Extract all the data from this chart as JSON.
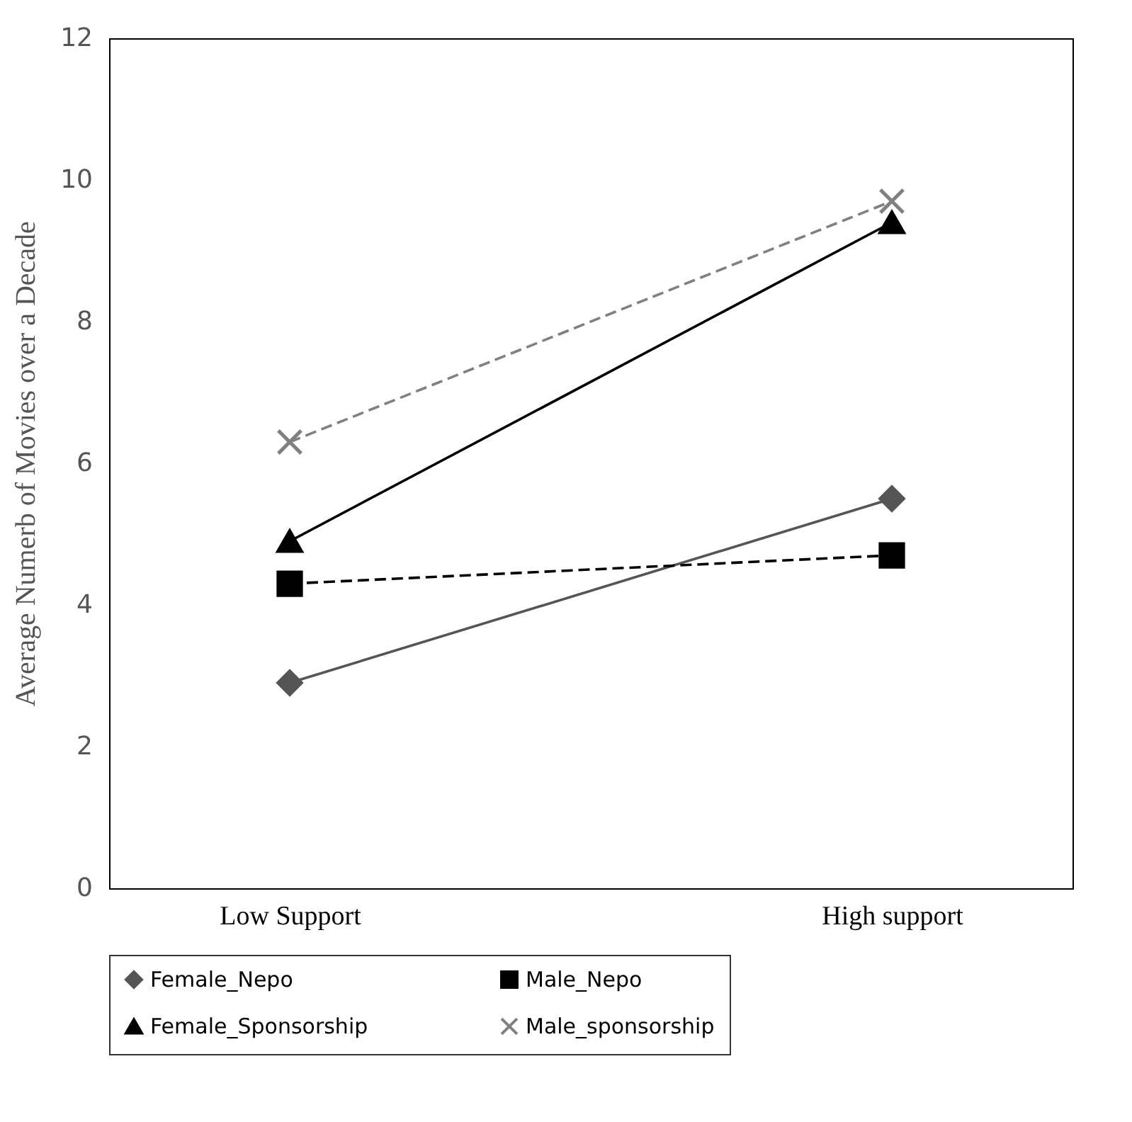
{
  "chart_data": {
    "type": "line",
    "ylabel": "Average Numerb of Movies over a Decade",
    "categories": [
      "Low Support",
      "High support"
    ],
    "ylim": [
      0,
      12
    ],
    "yticks": [
      0,
      2,
      4,
      6,
      8,
      10,
      12
    ],
    "grid": false,
    "legend": "bottom",
    "series": [
      {
        "name": "Female_Nepo",
        "color": "#555555",
        "marker": "diamond",
        "line_style": "solid",
        "values": [
          2.9,
          5.5
        ]
      },
      {
        "name": "Male_Nepo",
        "color": "#000000",
        "marker": "square",
        "line_style": "dashed",
        "values": [
          4.3,
          4.7
        ]
      },
      {
        "name": "Female_Sponsorship",
        "color": "#000000",
        "marker": "triangle",
        "line_style": "solid",
        "values": [
          4.9,
          9.4
        ]
      },
      {
        "name": "Male_sponsorship",
        "color": "#808080",
        "marker": "cross",
        "line_style": "dashed",
        "values": [
          6.3,
          9.7
        ]
      }
    ]
  }
}
